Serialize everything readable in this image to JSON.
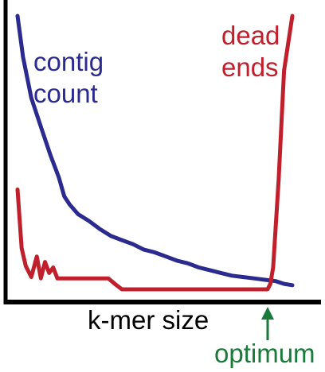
{
  "chart_data": {
    "type": "line",
    "title": "",
    "xlabel": "k-mer size",
    "ylabel": "",
    "xlim": [
      0,
      100
    ],
    "ylim": [
      0,
      100
    ],
    "axis_ticks": false,
    "grid": false,
    "series": [
      {
        "name": "contig count",
        "color": "#2b2a8f",
        "x": [
          0,
          2,
          5,
          9,
          12,
          15,
          17,
          19,
          22,
          26,
          30,
          34,
          38,
          42,
          46,
          50,
          54,
          58,
          62,
          66,
          70,
          74,
          78,
          82,
          86,
          90,
          94,
          97,
          100
        ],
        "y": [
          100,
          85,
          70,
          58,
          49,
          41,
          34,
          31,
          27.5,
          25,
          22,
          19.5,
          18,
          16.5,
          14.5,
          13.5,
          12,
          10.5,
          9.5,
          8,
          7,
          6,
          5,
          4.5,
          4,
          3.5,
          3,
          2,
          1.5
        ]
      },
      {
        "name": "dead ends",
        "color": "#c0202c",
        "x": [
          0,
          1.5,
          3,
          5,
          7,
          8.5,
          10,
          11.5,
          13,
          14.5,
          17,
          20,
          25,
          30,
          33,
          36,
          38,
          42,
          50,
          60,
          70,
          80,
          87,
          91,
          92,
          93,
          95,
          97,
          100
        ],
        "y": [
          36.5,
          15,
          8.5,
          4.5,
          12,
          4,
          10,
          6,
          8,
          4,
          4,
          4,
          4,
          4,
          4,
          1.5,
          0,
          0,
          0,
          0,
          0,
          0,
          0,
          0,
          2,
          8,
          40,
          80,
          100
        ]
      }
    ],
    "annotations": [
      {
        "text": "optimum",
        "x": 91,
        "color": "#1a7a3a"
      }
    ]
  },
  "labels": {
    "contig_line1": "contig",
    "contig_line2": "count",
    "dead_line1": "dead",
    "dead_line2": "ends",
    "xlabel": "k-mer size",
    "optimum": "optimum"
  }
}
